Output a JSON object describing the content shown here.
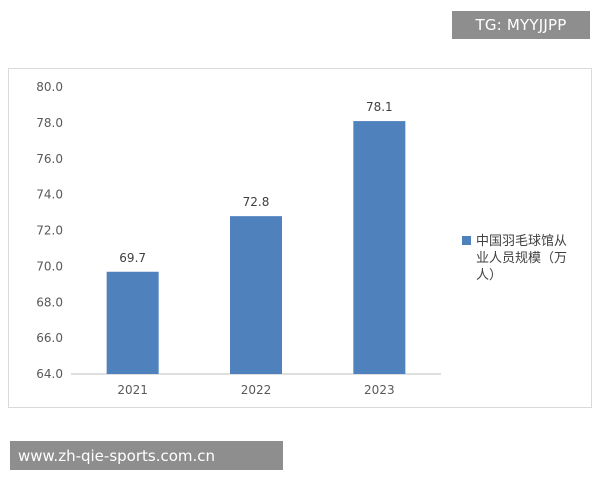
{
  "watermark_top": "TG: MYYJJPP",
  "watermark_bottom": "www.zh-qie-sports.com.cn",
  "chart_data": {
    "type": "bar",
    "categories": [
      "2021",
      "2022",
      "2023"
    ],
    "series": [
      {
        "name": "中国羽毛球馆从业人员规模（万人）",
        "values": [
          69.7,
          72.8,
          78.1
        ]
      }
    ],
    "data_labels": [
      "69.7",
      "72.8",
      "78.1"
    ],
    "ylim": [
      64.0,
      80.0
    ],
    "yticks": [
      "64.0",
      "66.0",
      "68.0",
      "70.0",
      "72.0",
      "74.0",
      "76.0",
      "78.0",
      "80.0"
    ],
    "legend_lines": [
      "中国羽毛球馆从",
      "业人员规模（万",
      "人）"
    ],
    "legend_position": "right",
    "grid": false,
    "bar_color": "#4f81bd"
  }
}
